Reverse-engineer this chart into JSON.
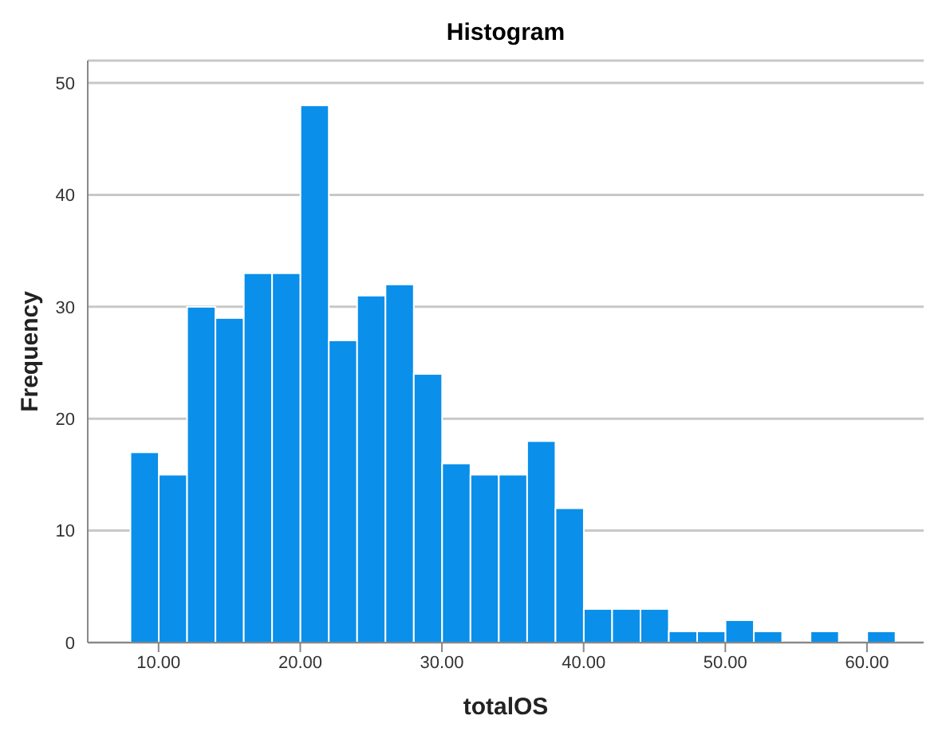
{
  "chart_data": {
    "type": "histogram",
    "title": "Histogram",
    "xlabel": "totalOS",
    "ylabel": "Frequency",
    "bins": [
      8,
      10,
      12,
      14,
      16,
      18,
      20,
      22,
      24,
      26,
      28,
      30,
      32,
      34,
      36,
      38,
      40,
      42,
      44,
      46,
      48,
      50,
      52,
      54,
      56,
      58,
      60,
      62
    ],
    "values": [
      17,
      15,
      30,
      29,
      33,
      33,
      48,
      27,
      31,
      32,
      24,
      16,
      15,
      15,
      18,
      12,
      3,
      3,
      3,
      1,
      1,
      2,
      1,
      0,
      1,
      0,
      1
    ],
    "color": "#0a8fea",
    "xlim": [
      5,
      64
    ],
    "xticks": [
      {
        "value": 10,
        "label": "10.00"
      },
      {
        "value": 20,
        "label": "20.00"
      },
      {
        "value": 30,
        "label": "30.00"
      },
      {
        "value": 40,
        "label": "40.00"
      },
      {
        "value": 50,
        "label": "50.00"
      },
      {
        "value": 60,
        "label": "60.00"
      }
    ],
    "ylim": [
      0,
      52
    ],
    "yticks": [
      0,
      10,
      20,
      30,
      40,
      50
    ],
    "grid": "y"
  }
}
